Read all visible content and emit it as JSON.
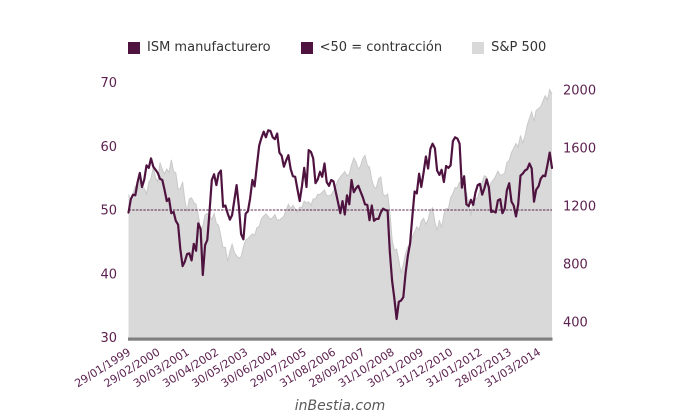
{
  "legend": {
    "items": [
      {
        "label": "ISM manufacturero",
        "color": "#4f1340"
      },
      {
        "label": "<50 = contracción",
        "color": "#4f1340"
      },
      {
        "label": "S&P 500",
        "color": "#d9d9d9"
      }
    ]
  },
  "watermark": "inBestia.com",
  "colors": {
    "accent": "#4f1340",
    "area": "#d9d9d9",
    "area_edge": "#c9c9c9",
    "axis_line": "#7f7f7f",
    "tick_text": "#5c2150",
    "legend_text": "#333333",
    "watermark": "#595959"
  },
  "chart_data": {
    "type": "line",
    "title": "",
    "x_start": "1999-01",
    "x_end": "2014-09",
    "x_tick_labels": [
      "29/01/1999",
      "29/02/2000",
      "30/03/2001",
      "30/04/2002",
      "30/05/2003",
      "30/06/2004",
      "29/07/2005",
      "31/08/2006",
      "28/09/2007",
      "31/10/2008",
      "30/11/2009",
      "31/12/2010",
      "31/01/2012",
      "28/02/2013",
      "31/03/2014"
    ],
    "x_tick_month_index": [
      0,
      13,
      26,
      39,
      52,
      65,
      78,
      91,
      104,
      117,
      130,
      143,
      156,
      169,
      182
    ],
    "left_axis": {
      "series": "ISM manufacturero",
      "min": 30,
      "max": 70,
      "ticks": [
        70,
        60,
        50,
        40,
        30
      ]
    },
    "right_axis": {
      "series": "S&P 500",
      "ticks": [
        2000,
        1600,
        1200,
        800,
        400
      ]
    },
    "reference_line": {
      "value": 50,
      "label": "<50 = contracción"
    },
    "grid": false,
    "legend_position": "top",
    "series": [
      {
        "name": "ISM manufacturero",
        "type": "line",
        "axis": "left",
        "color": "#4f1340",
        "values": [
          49.6,
          51.7,
          52.4,
          52.3,
          54.3,
          55.8,
          53.6,
          54.8,
          57.0,
          56.6,
          58.1,
          56.8,
          56.3,
          55.8,
          54.9,
          54.7,
          53.2,
          51.4,
          51.8,
          49.5,
          49.7,
          48.3,
          47.7,
          43.9,
          41.2,
          41.9,
          43.1,
          43.2,
          42.1,
          44.7,
          43.6,
          47.9,
          47.0,
          39.8,
          44.5,
          45.3,
          49.9,
          54.7,
          55.6,
          53.9,
          55.7,
          56.2,
          50.5,
          50.7,
          49.5,
          48.5,
          49.2,
          51.6,
          53.9,
          50.5,
          46.2,
          45.4,
          49.4,
          49.8,
          51.8,
          54.7,
          53.7,
          57.0,
          60.1,
          61.3,
          62.3,
          61.4,
          62.5,
          62.4,
          61.4,
          61.1,
          62.0,
          59.0,
          58.5,
          56.8,
          57.8,
          58.6,
          56.4,
          55.3,
          55.2,
          53.3,
          51.4,
          53.8,
          56.6,
          53.6,
          59.4,
          59.1,
          58.1,
          54.2,
          54.8,
          56.0,
          55.2,
          57.3,
          54.4,
          53.8,
          54.7,
          54.5,
          52.9,
          51.2,
          49.5,
          51.4,
          49.3,
          52.3,
          50.9,
          54.7,
          52.8,
          53.4,
          53.8,
          52.9,
          52.0,
          50.9,
          50.8,
          48.4,
          50.7,
          48.3,
          48.6,
          48.6,
          49.6,
          50.2,
          50.0,
          49.9,
          43.5,
          38.9,
          36.2,
          32.9,
          35.6,
          35.8,
          36.3,
          40.1,
          42.8,
          44.8,
          48.9,
          52.9,
          52.6,
          55.7,
          53.6,
          55.9,
          58.4,
          56.5,
          59.6,
          60.4,
          59.7,
          56.2,
          55.5,
          56.3,
          54.4,
          56.9,
          56.6,
          57.0,
          60.8,
          61.4,
          61.2,
          60.4,
          53.5,
          55.3,
          50.9,
          50.6,
          51.6,
          50.8,
          52.7,
          53.9,
          54.1,
          52.4,
          53.4,
          54.8,
          53.5,
          49.7,
          49.8,
          49.6,
          51.5,
          51.7,
          49.5,
          50.2,
          53.1,
          54.2,
          51.3,
          50.7,
          49.0,
          50.9,
          55.4,
          55.7,
          56.2,
          56.4,
          57.3,
          56.5,
          51.3,
          53.2,
          53.7,
          54.9,
          55.4,
          55.3,
          57.1,
          59.0,
          56.6
        ]
      },
      {
        "name": "S&P 500",
        "type": "area",
        "axis": "right",
        "color": "#d9d9d9",
        "values": [
          1280,
          1238,
          1286,
          1335,
          1302,
          1373,
          1329,
          1320,
          1283,
          1363,
          1389,
          1469,
          1394,
          1366,
          1499,
          1452,
          1421,
          1455,
          1431,
          1518,
          1437,
          1429,
          1315,
          1320,
          1366,
          1240,
          1160,
          1249,
          1256,
          1224,
          1211,
          1134,
          1041,
          1060,
          1139,
          1148,
          1130,
          1107,
          1147,
          1077,
          1067,
          990,
          912,
          916,
          815,
          886,
          936,
          880,
          856,
          841,
          848,
          917,
          964,
          975,
          990,
          1008,
          996,
          1051,
          1058,
          1112,
          1131,
          1145,
          1126,
          1107,
          1121,
          1141,
          1102,
          1104,
          1115,
          1130,
          1174,
          1212,
          1181,
          1204,
          1181,
          1157,
          1192,
          1191,
          1234,
          1220,
          1229,
          1207,
          1249,
          1248,
          1280,
          1281,
          1295,
          1311,
          1270,
          1270,
          1277,
          1304,
          1336,
          1378,
          1401,
          1418,
          1438,
          1407,
          1421,
          1482,
          1531,
          1503,
          1455,
          1474,
          1527,
          1549,
          1481,
          1468,
          1379,
          1331,
          1323,
          1386,
          1400,
          1280,
          1267,
          1283,
          1166,
          969,
          896,
          903,
          826,
          735,
          798,
          873,
          919,
          919,
          987,
          1021,
          1057,
          1036,
          1096,
          1115,
          1074,
          1104,
          1169,
          1187,
          1089,
          1031,
          1102,
          1049,
          1141,
          1183,
          1181,
          1258,
          1286,
          1327,
          1326,
          1364,
          1345,
          1321,
          1292,
          1219,
          1131,
          1253,
          1247,
          1258,
          1312,
          1366,
          1408,
          1398,
          1310,
          1362,
          1379,
          1407,
          1441,
          1412,
          1416,
          1426,
          1498,
          1515,
          1569,
          1598,
          1631,
          1606,
          1686,
          1633,
          1682,
          1757,
          1806,
          1848,
          1783,
          1859,
          1872,
          1884,
          1924,
          1960,
          1931,
          2003,
          1972
        ]
      }
    ]
  }
}
